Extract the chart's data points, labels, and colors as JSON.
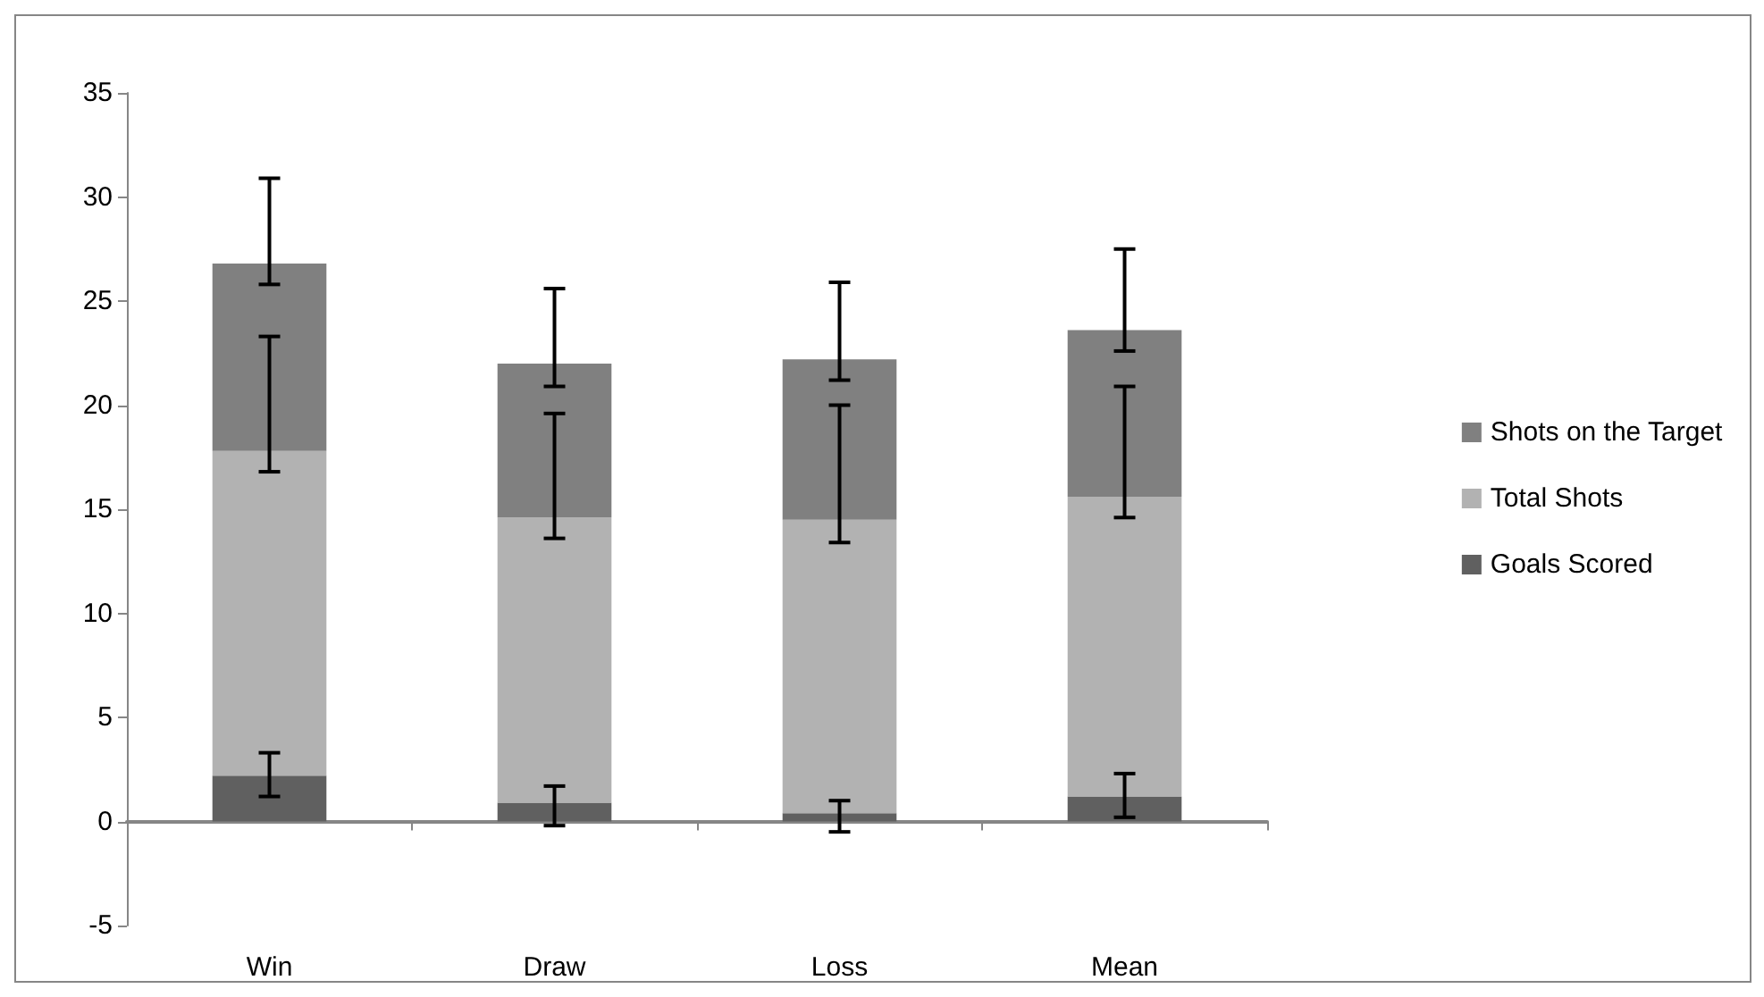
{
  "chart_data": {
    "type": "bar",
    "stacked": true,
    "categories": [
      "Win",
      "Draw",
      "Loss",
      "Mean"
    ],
    "series": [
      {
        "name": "Goals Scored",
        "color": "#606060",
        "values": [
          2.2,
          0.9,
          0.4,
          1.2
        ],
        "errors": [
          [
            1.2,
            3.3
          ],
          [
            -0.2,
            1.7
          ],
          [
            -0.5,
            1.0
          ],
          [
            0.2,
            2.3
          ]
        ]
      },
      {
        "name": "Total Shots",
        "color": "#b2b2b2",
        "values": [
          15.6,
          13.7,
          14.1,
          14.4
        ],
        "errors": [
          [
            16.8,
            23.3
          ],
          [
            13.6,
            19.6
          ],
          [
            13.4,
            20.0
          ],
          [
            14.6,
            20.9
          ]
        ]
      },
      {
        "name": "Shots on the Target",
        "color": "#808080",
        "values": [
          9.0,
          7.4,
          7.7,
          8.0
        ],
        "errors": [
          [
            25.8,
            30.9
          ],
          [
            20.9,
            25.6
          ],
          [
            21.2,
            25.9
          ],
          [
            22.6,
            27.5
          ]
        ]
      }
    ],
    "ylim": [
      -5,
      35
    ],
    "yticks": [
      -5,
      0,
      5,
      10,
      15,
      20,
      25,
      30,
      35
    ],
    "legend": "right"
  }
}
